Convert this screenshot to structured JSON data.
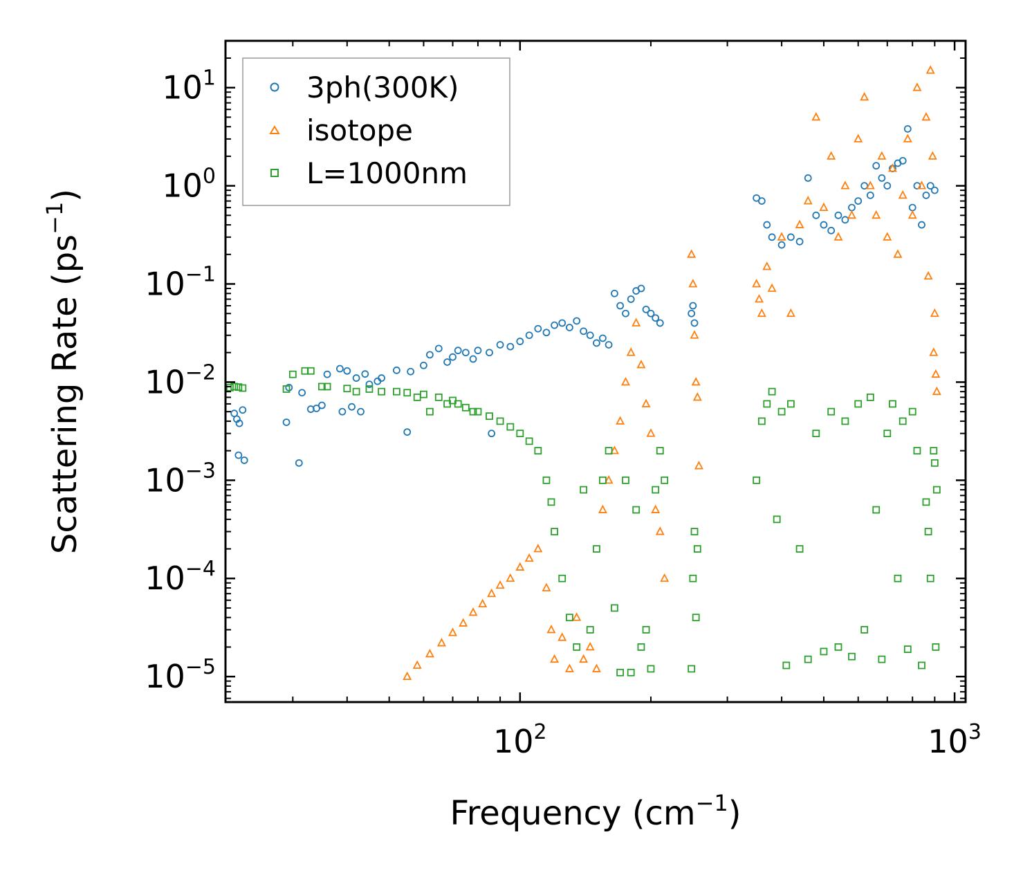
{
  "chart_data": {
    "type": "scatter",
    "xscale": "log",
    "yscale": "log",
    "xlim": [
      21,
      1060
    ],
    "ylim": [
      5.5e-06,
      30
    ],
    "xlabel": {
      "text": "Frequency (cm",
      "sup": "−1",
      "end": ")"
    },
    "ylabel": {
      "text": "Scattering Rate (ps",
      "sup": "−1",
      "end": ")"
    },
    "x_ticks": [
      {
        "value": 100,
        "base": "10",
        "exp": "2"
      },
      {
        "value": 1000,
        "base": "10",
        "exp": "3"
      }
    ],
    "y_ticks": [
      {
        "value": 1e-05,
        "base": "10",
        "exp": "−5"
      },
      {
        "value": 0.0001,
        "base": "10",
        "exp": "−4"
      },
      {
        "value": 0.001,
        "base": "10",
        "exp": "−3"
      },
      {
        "value": 0.01,
        "base": "10",
        "exp": "−2"
      },
      {
        "value": 0.1,
        "base": "10",
        "exp": "−1"
      },
      {
        "value": 1,
        "base": "10",
        "exp": "0"
      },
      {
        "value": 10,
        "base": "10",
        "exp": "1"
      }
    ],
    "legend": {
      "placement": "top-left"
    },
    "series": [
      {
        "name": "3ph(300K)",
        "marker": "circle",
        "color": "#1f77b4",
        "points": [
          [
            22,
            0.0048
          ],
          [
            22.3,
            0.0042
          ],
          [
            22.6,
            0.0038
          ],
          [
            23,
            0.0052
          ],
          [
            22.5,
            0.0018
          ],
          [
            23.2,
            0.0016
          ],
          [
            29,
            0.0039
          ],
          [
            29.4,
            0.0088
          ],
          [
            31,
            0.0015
          ],
          [
            31.5,
            0.0078
          ],
          [
            33,
            0.0053
          ],
          [
            34,
            0.0054
          ],
          [
            35,
            0.0058
          ],
          [
            36,
            0.012
          ],
          [
            38.5,
            0.0137
          ],
          [
            39,
            0.005
          ],
          [
            40,
            0.013
          ],
          [
            41,
            0.0056
          ],
          [
            42,
            0.011
          ],
          [
            43,
            0.005
          ],
          [
            44,
            0.0121
          ],
          [
            45,
            0.0095
          ],
          [
            47,
            0.0102
          ],
          [
            48,
            0.011
          ],
          [
            52,
            0.0132
          ],
          [
            55,
            0.0031
          ],
          [
            56,
            0.0128
          ],
          [
            60,
            0.0148
          ],
          [
            62,
            0.019
          ],
          [
            65,
            0.022
          ],
          [
            68,
            0.016
          ],
          [
            70,
            0.018
          ],
          [
            72,
            0.021
          ],
          [
            75,
            0.02
          ],
          [
            78,
            0.0172
          ],
          [
            80,
            0.021
          ],
          [
            85,
            0.02
          ],
          [
            86,
            0.003
          ],
          [
            90,
            0.024
          ],
          [
            95,
            0.023
          ],
          [
            100,
            0.026
          ],
          [
            105,
            0.03
          ],
          [
            110,
            0.035
          ],
          [
            115,
            0.032
          ],
          [
            120,
            0.038
          ],
          [
            125,
            0.04
          ],
          [
            130,
            0.036
          ],
          [
            135,
            0.042
          ],
          [
            140,
            0.033
          ],
          [
            145,
            0.03
          ],
          [
            150,
            0.025
          ],
          [
            155,
            0.028
          ],
          [
            160,
            0.024
          ],
          [
            165,
            0.08
          ],
          [
            170,
            0.06
          ],
          [
            175,
            0.05
          ],
          [
            180,
            0.07
          ],
          [
            185,
            0.085
          ],
          [
            190,
            0.09
          ],
          [
            195,
            0.055
          ],
          [
            200,
            0.05
          ],
          [
            205,
            0.045
          ],
          [
            210,
            0.04
          ],
          [
            248,
            0.05
          ],
          [
            250,
            0.06
          ],
          [
            252,
            0.04
          ],
          [
            350,
            0.75
          ],
          [
            360,
            0.7
          ],
          [
            370,
            0.4
          ],
          [
            380,
            0.3
          ],
          [
            400,
            0.25
          ],
          [
            420,
            0.3
          ],
          [
            440,
            0.27
          ],
          [
            460,
            1.2
          ],
          [
            480,
            0.5
          ],
          [
            500,
            0.4
          ],
          [
            520,
            0.35
          ],
          [
            540,
            0.5
          ],
          [
            560,
            0.45
          ],
          [
            580,
            0.6
          ],
          [
            600,
            0.7
          ],
          [
            620,
            1.0
          ],
          [
            640,
            0.8
          ],
          [
            660,
            1.6
          ],
          [
            680,
            1.2
          ],
          [
            700,
            1.0
          ],
          [
            720,
            1.5
          ],
          [
            740,
            1.7
          ],
          [
            760,
            1.8
          ],
          [
            780,
            3.8
          ],
          [
            800,
            0.6
          ],
          [
            820,
            1.0
          ],
          [
            840,
            0.4
          ],
          [
            860,
            0.8
          ],
          [
            880,
            1.0
          ],
          [
            900,
            0.9
          ]
        ]
      },
      {
        "name": "isotope",
        "marker": "triangle",
        "color": "#ff7f0e",
        "points": [
          [
            55,
            1e-05
          ],
          [
            58,
            1.3e-05
          ],
          [
            62,
            1.7e-05
          ],
          [
            66,
            2.2e-05
          ],
          [
            70,
            2.8e-05
          ],
          [
            74,
            3.5e-05
          ],
          [
            78,
            4.5e-05
          ],
          [
            82,
            5.5e-05
          ],
          [
            86,
            7e-05
          ],
          [
            90,
            8.5e-05
          ],
          [
            95,
            0.0001
          ],
          [
            100,
            0.00013
          ],
          [
            105,
            0.00016
          ],
          [
            110,
            0.0002
          ],
          [
            115,
            8e-05
          ],
          [
            118,
            3e-05
          ],
          [
            120,
            1.5e-05
          ],
          [
            125,
            2.5e-05
          ],
          [
            130,
            1.2e-05
          ],
          [
            135,
            4e-05
          ],
          [
            140,
            1.5e-05
          ],
          [
            145,
            2e-05
          ],
          [
            150,
            1.2e-05
          ],
          [
            155,
            0.0005
          ],
          [
            160,
            0.001
          ],
          [
            165,
            0.002
          ],
          [
            170,
            0.004
          ],
          [
            175,
            0.01
          ],
          [
            180,
            0.02
          ],
          [
            185,
            0.04
          ],
          [
            190,
            0.015
          ],
          [
            195,
            0.006
          ],
          [
            200,
            0.003
          ],
          [
            205,
            0.0005
          ],
          [
            210,
            0.0003
          ],
          [
            215,
            0.0001
          ],
          [
            248,
            0.2
          ],
          [
            250,
            0.1
          ],
          [
            252,
            0.03
          ],
          [
            254,
            0.01
          ],
          [
            256,
            0.007
          ],
          [
            258,
            0.0014
          ],
          [
            350,
            0.1
          ],
          [
            355,
            0.07
          ],
          [
            360,
            0.05
          ],
          [
            370,
            0.15
          ],
          [
            380,
            0.09
          ],
          [
            400,
            0.3
          ],
          [
            420,
            0.05
          ],
          [
            440,
            0.4
          ],
          [
            460,
            0.7
          ],
          [
            480,
            5.0
          ],
          [
            500,
            0.6
          ],
          [
            520,
            2.0
          ],
          [
            540,
            0.3
          ],
          [
            560,
            1.0
          ],
          [
            580,
            0.5
          ],
          [
            600,
            3.0
          ],
          [
            620,
            8.0
          ],
          [
            640,
            1.0
          ],
          [
            660,
            0.5
          ],
          [
            680,
            2.0
          ],
          [
            700,
            0.3
          ],
          [
            720,
            1.5
          ],
          [
            740,
            0.2
          ],
          [
            760,
            0.8
          ],
          [
            780,
            3.0
          ],
          [
            800,
            0.5
          ],
          [
            820,
            10.0
          ],
          [
            840,
            1.0
          ],
          [
            860,
            5.0
          ],
          [
            880,
            15.0
          ],
          [
            890,
            2.0
          ],
          [
            900,
            0.05
          ],
          [
            905,
            0.012
          ],
          [
            910,
            0.008
          ],
          [
            895,
            0.02
          ],
          [
            870,
            0.12
          ]
        ]
      },
      {
        "name": "L=1000nm",
        "marker": "square",
        "color": "#2ca02c",
        "points": [
          [
            21.5,
            0.0088
          ],
          [
            22,
            0.009
          ],
          [
            22.5,
            0.0089
          ],
          [
            23,
            0.0087
          ],
          [
            29,
            0.0085
          ],
          [
            30,
            0.012
          ],
          [
            32,
            0.013
          ],
          [
            33,
            0.013
          ],
          [
            35,
            0.009
          ],
          [
            36,
            0.009
          ],
          [
            40,
            0.0086
          ],
          [
            42,
            0.008
          ],
          [
            45,
            0.0085
          ],
          [
            48,
            0.008
          ],
          [
            52,
            0.008
          ],
          [
            55,
            0.0078
          ],
          [
            58,
            0.007
          ],
          [
            60,
            0.0075
          ],
          [
            62,
            0.005
          ],
          [
            65,
            0.007
          ],
          [
            68,
            0.006
          ],
          [
            70,
            0.0065
          ],
          [
            72,
            0.006
          ],
          [
            75,
            0.0055
          ],
          [
            78,
            0.005
          ],
          [
            80,
            0.005
          ],
          [
            85,
            0.0045
          ],
          [
            90,
            0.004
          ],
          [
            95,
            0.0035
          ],
          [
            100,
            0.003
          ],
          [
            105,
            0.0025
          ],
          [
            110,
            0.002
          ],
          [
            115,
            0.001
          ],
          [
            118,
            0.0006
          ],
          [
            120,
            0.0003
          ],
          [
            125,
            0.0001
          ],
          [
            130,
            4e-05
          ],
          [
            135,
            2e-05
          ],
          [
            140,
            0.0008
          ],
          [
            145,
            3e-05
          ],
          [
            150,
            0.0002
          ],
          [
            155,
            0.001
          ],
          [
            160,
            0.002
          ],
          [
            165,
            5e-05
          ],
          [
            170,
            1.1e-05
          ],
          [
            175,
            0.001
          ],
          [
            180,
            1.1e-05
          ],
          [
            185,
            0.0005
          ],
          [
            190,
            2e-05
          ],
          [
            195,
            3e-05
          ],
          [
            200,
            1.2e-05
          ],
          [
            205,
            0.0008
          ],
          [
            210,
            0.002
          ],
          [
            215,
            0.001
          ],
          [
            248,
            1.2e-05
          ],
          [
            250,
            0.0001
          ],
          [
            252,
            0.0003
          ],
          [
            254,
            4e-05
          ],
          [
            256,
            0.0002
          ],
          [
            350,
            0.001
          ],
          [
            360,
            0.004
          ],
          [
            370,
            0.006
          ],
          [
            380,
            0.008
          ],
          [
            390,
            0.0004
          ],
          [
            400,
            0.005
          ],
          [
            410,
            1.3e-05
          ],
          [
            420,
            0.006
          ],
          [
            440,
            0.0002
          ],
          [
            460,
            1.5e-05
          ],
          [
            480,
            0.003
          ],
          [
            500,
            1.8e-05
          ],
          [
            520,
            0.005
          ],
          [
            540,
            2e-05
          ],
          [
            560,
            0.004
          ],
          [
            580,
            1.6e-05
          ],
          [
            600,
            0.006
          ],
          [
            620,
            3e-05
          ],
          [
            640,
            0.007
          ],
          [
            660,
            0.0005
          ],
          [
            680,
            1.5e-05
          ],
          [
            700,
            0.003
          ],
          [
            720,
            0.006
          ],
          [
            740,
            0.0001
          ],
          [
            760,
            0.004
          ],
          [
            780,
            1.9e-05
          ],
          [
            800,
            0.005
          ],
          [
            820,
            0.002
          ],
          [
            840,
            1.3e-05
          ],
          [
            860,
            0.0006
          ],
          [
            880,
            0.0001
          ],
          [
            900,
            0.0015
          ],
          [
            905,
            2e-05
          ],
          [
            910,
            0.0008
          ],
          [
            895,
            0.002
          ],
          [
            870,
            0.0003
          ]
        ]
      }
    ]
  }
}
